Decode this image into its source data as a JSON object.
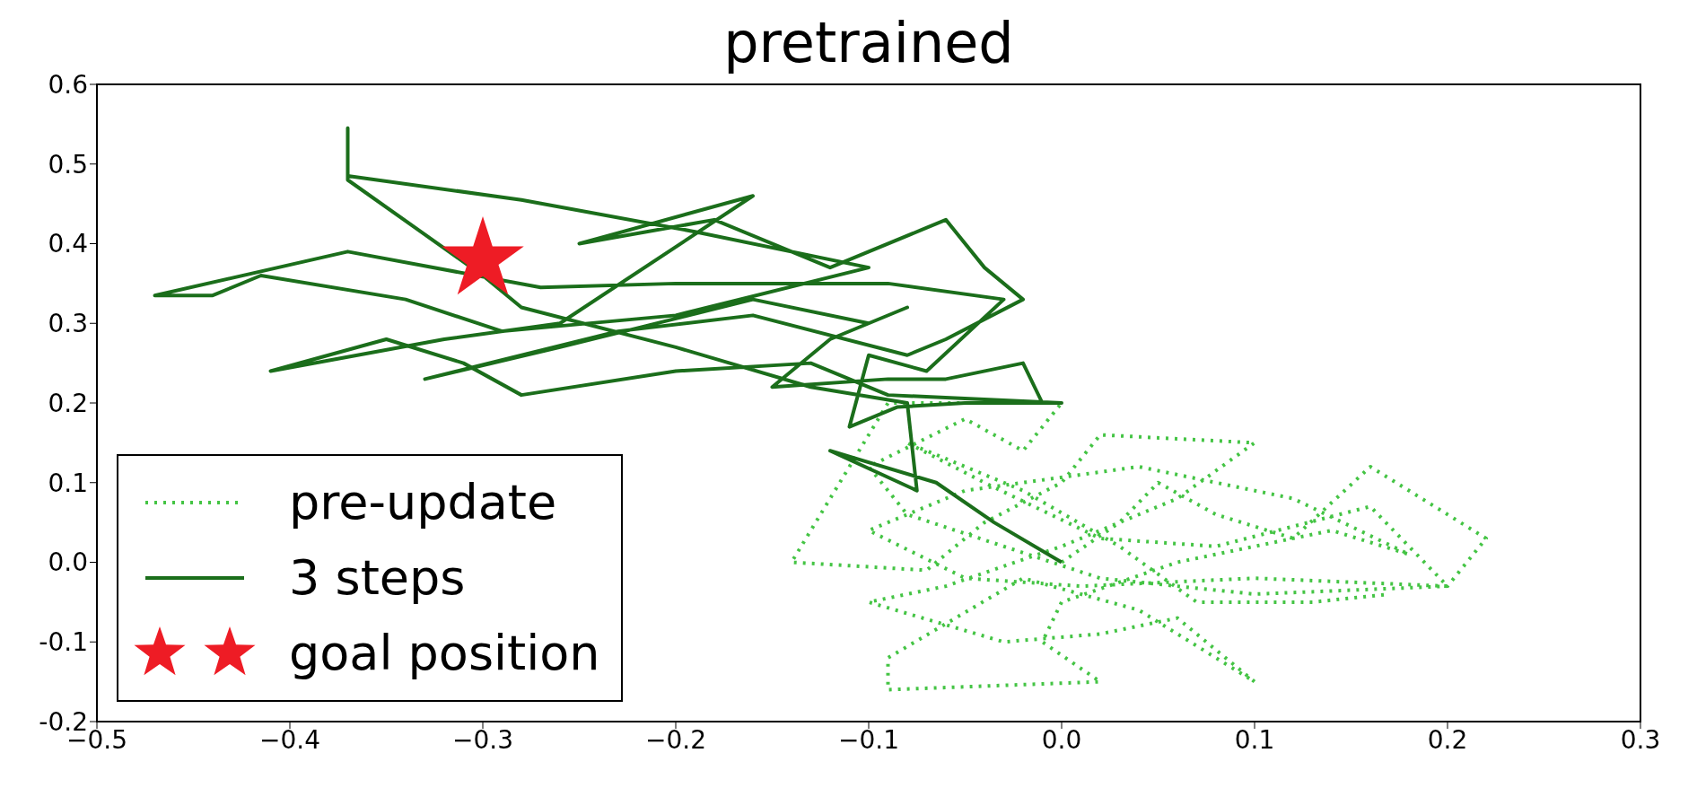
{
  "chart_data": {
    "type": "line",
    "title": "pretrained",
    "xlim": [
      -0.5,
      0.3
    ],
    "ylim": [
      -0.2,
      0.6
    ],
    "xticks": [
      {
        "value": -0.5,
        "label": "−0.5"
      },
      {
        "value": -0.4,
        "label": "−0.4"
      },
      {
        "value": -0.3,
        "label": "−0.3"
      },
      {
        "value": -0.2,
        "label": "−0.2"
      },
      {
        "value": -0.1,
        "label": "−0.1"
      },
      {
        "value": 0,
        "label": "0.0"
      },
      {
        "value": 0.1,
        "label": "0.1"
      },
      {
        "value": 0.2,
        "label": "0.2"
      },
      {
        "value": 0.3,
        "label": "0.3"
      }
    ],
    "yticks": [
      {
        "value": -0.2,
        "label": "-0.2"
      },
      {
        "value": -0.1,
        "label": "-0.1"
      },
      {
        "value": 0,
        "label": "0.0"
      },
      {
        "value": 0.1,
        "label": "0.1"
      },
      {
        "value": 0.2,
        "label": "0.2"
      },
      {
        "value": 0.3,
        "label": "0.3"
      },
      {
        "value": 0.4,
        "label": "0.4"
      },
      {
        "value": 0.5,
        "label": "0.5"
      },
      {
        "value": 0.6,
        "label": "0.6"
      }
    ],
    "grid": false,
    "legend": "bottom left",
    "marker": "none",
    "series": [
      {
        "name": "pre-update",
        "line_style": "dotted",
        "color": "#44c444",
        "x": [
          0,
          0.03,
          0.05,
          0.08,
          0.12,
          0.16,
          0.22,
          0.2,
          0.1,
          0.02,
          -0.03,
          -0.08,
          -0.1,
          -0.05,
          -0.02,
          0,
          -0.09,
          -0.14,
          -0.07,
          -0.04,
          0,
          0.02,
          0.1,
          0.06,
          0,
          -0.06,
          -0.1,
          -0.03,
          0.02,
          0.06,
          0.1,
          0.04,
          -0.02,
          -0.09,
          -0.09,
          0.02,
          -0.01,
          0,
          0.06,
          0.14,
          0.18,
          0.12,
          0.04,
          -0.05,
          -0.1,
          -0.05,
          0.01,
          0.1,
          0.2,
          0.16,
          0.08,
          0.02,
          -0.04,
          -0.08,
          -0.02,
          0.03,
          0.07,
          0.13,
          0.17
        ],
        "values": [
          0,
          0.05,
          0.1,
          0.06,
          0.03,
          0.12,
          0.03,
          -0.03,
          -0.04,
          -0.02,
          0.02,
          0.06,
          0.12,
          0.18,
          0.14,
          0.2,
          0.2,
          0,
          -0.01,
          0.05,
          0.1,
          0.16,
          0.15,
          0.08,
          0.02,
          -0.03,
          -0.05,
          -0.1,
          -0.09,
          -0.07,
          -0.15,
          -0.06,
          -0.02,
          -0.12,
          -0.16,
          -0.15,
          -0.1,
          -0.05,
          0,
          0.04,
          0.01,
          0.08,
          0.12,
          0.09,
          0.04,
          -0.02,
          -0.03,
          -0.02,
          -0.03,
          0.07,
          0.02,
          0.03,
          0.1,
          0.15,
          0.09,
          0.02,
          -0.05,
          -0.05,
          -0.04
        ]
      },
      {
        "name": "3 steps",
        "line_style": "solid",
        "color": "#1b6e1b",
        "x": [
          0,
          -0.035,
          -0.065,
          -0.12,
          -0.075,
          -0.08,
          -0.13,
          -0.2,
          -0.28,
          -0.3,
          -0.37,
          -0.37,
          -0.37,
          -0.28,
          -0.19,
          -0.1,
          -0.2,
          -0.29,
          -0.34,
          -0.415,
          -0.44,
          -0.47,
          -0.37,
          -0.27,
          -0.2,
          -0.09,
          -0.03,
          -0.07,
          -0.1,
          -0.11,
          -0.085,
          -0.05,
          0,
          -0.09,
          -0.13,
          -0.2,
          -0.28,
          -0.31,
          -0.35,
          -0.41,
          -0.32,
          -0.26,
          -0.16,
          -0.25,
          -0.18,
          -0.12,
          -0.06,
          -0.04,
          -0.02,
          -0.06,
          -0.08,
          -0.16,
          -0.23,
          -0.33,
          -0.26,
          -0.16,
          -0.1,
          -0.08,
          -0.12,
          -0.15,
          -0.09,
          -0.06,
          -0.02,
          -0.01
        ],
        "values": [
          0,
          0.05,
          0.1,
          0.14,
          0.09,
          0.2,
          0.22,
          0.27,
          0.32,
          0.36,
          0.48,
          0.545,
          0.485,
          0.455,
          0.415,
          0.37,
          0.31,
          0.29,
          0.33,
          0.36,
          0.335,
          0.335,
          0.39,
          0.345,
          0.35,
          0.35,
          0.33,
          0.24,
          0.26,
          0.17,
          0.195,
          0.2,
          0.2,
          0.21,
          0.25,
          0.24,
          0.21,
          0.25,
          0.28,
          0.24,
          0.28,
          0.3,
          0.46,
          0.4,
          0.43,
          0.37,
          0.43,
          0.37,
          0.33,
          0.28,
          0.26,
          0.31,
          0.29,
          0.23,
          0.27,
          0.33,
          0.3,
          0.32,
          0.28,
          0.22,
          0.23,
          0.23,
          0.25,
          0.2
        ]
      },
      {
        "name": "goal position",
        "type": "scatter",
        "marker": "star",
        "color": "#ee1c25",
        "x": [
          -0.3
        ],
        "values": [
          0.38
        ]
      }
    ]
  }
}
